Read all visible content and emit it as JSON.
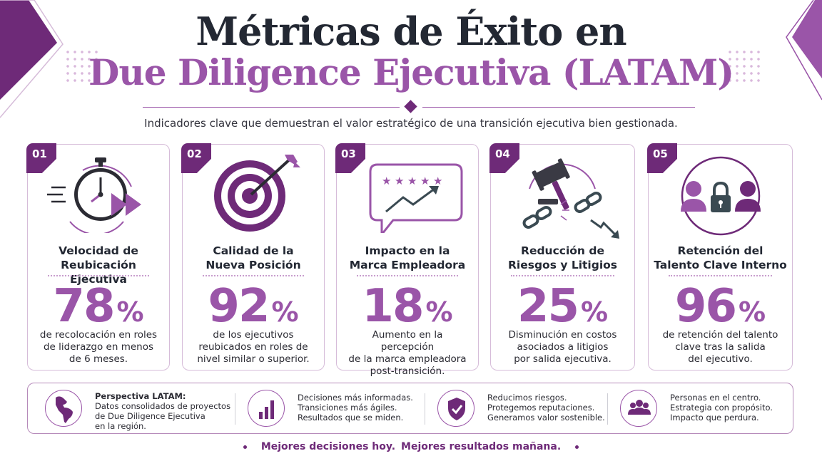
{
  "header": {
    "title_line1": "Métricas de Éxito en",
    "title_line2": "Due Diligence Ejecutiva (LATAM)",
    "subtitle": "Indicadores clave que demuestran el valor estratégico de una transición ejecutiva bien gestionada."
  },
  "colors": {
    "primary_dark": "#6e2a78",
    "primary": "#9a55a8",
    "light": "#d6bcd9",
    "text": "#232833"
  },
  "cards": [
    {
      "number": "01",
      "icon": "stopwatch-fast-forward-icon",
      "title_line1": "Velocidad de",
      "title_line2": "Reubicación Ejecutiva",
      "value": "78",
      "unit": "%",
      "desc_line1": "de recolocación en roles",
      "desc_line2": "de liderazgo en menos",
      "desc_line3": "de 6 meses."
    },
    {
      "number": "02",
      "icon": "target-arrow-icon",
      "title_line1": "Calidad de la",
      "title_line2": "Nueva Posición",
      "value": "92",
      "unit": "%",
      "desc_line1": "de los ejecutivos",
      "desc_line2": "reubicados en roles de",
      "desc_line3": "nivel similar o superior."
    },
    {
      "number": "03",
      "icon": "rating-chat-trend-icon",
      "title_line1": "Impacto en la",
      "title_line2": "Marca Empleadora",
      "value": "18",
      "unit": "%",
      "desc_line1": "Aumento en la percepción",
      "desc_line2": "de la marca empleadora",
      "desc_line3": "post-transición."
    },
    {
      "number": "04",
      "icon": "gavel-broken-chain-icon",
      "title_line1": "Reducción de",
      "title_line2": "Riesgos y Litigios",
      "value": "25",
      "unit": "%",
      "desc_line1": "Disminución en costos",
      "desc_line2": "asociados a litigios",
      "desc_line3": "por salida ejecutiva."
    },
    {
      "number": "05",
      "icon": "people-lock-icon",
      "title_line1": "Retención del",
      "title_line2": "Talento Clave Interno",
      "value": "96",
      "unit": "%",
      "desc_line1": "de retención del talento",
      "desc_line2": "clave tras la salida",
      "desc_line3": "del ejecutivo."
    }
  ],
  "bottom": {
    "perspective": {
      "icon": "latam-map-icon",
      "heading": "Perspectiva LATAM:",
      "line1": "Datos consolidados de proyectos",
      "line2": "de Due Diligence Ejecutiva",
      "line3": "en la región."
    },
    "decisions": {
      "icon": "bar-chart-icon",
      "line1": "Decisiones más informadas.",
      "line2": "Transiciones más ágiles.",
      "line3": "Resultados que se miden."
    },
    "risks": {
      "icon": "shield-check-icon",
      "line1": "Reducimos riesgos.",
      "line2": "Protegemos reputaciones.",
      "line3": "Generamos valor sostenible."
    },
    "people": {
      "icon": "people-group-icon",
      "line1": "Personas en el centro.",
      "line2": "Estrategia con propósito.",
      "line3": "Impacto que perdura."
    }
  },
  "footer": {
    "part1": "Mejores decisiones hoy.",
    "part2": "Mejores resultados mañana."
  }
}
